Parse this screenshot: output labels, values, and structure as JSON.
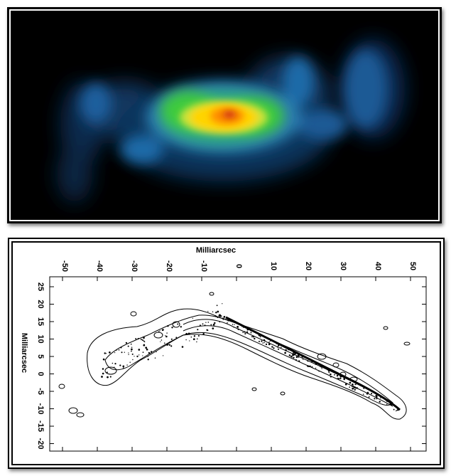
{
  "colors": {
    "background_top": "#000000",
    "glow_core": "#d01010",
    "glow_mid": "#ffd400",
    "glow_green": "#3ecb3e",
    "glow_outer": "#1f5f9f",
    "contour": "#000000"
  },
  "contour_plot": {
    "x_axis": {
      "title": "Milliarcsec",
      "ticks": [
        "-50",
        "-40",
        "-30",
        "-20",
        "-10",
        "0",
        "10",
        "20",
        "30",
        "40",
        "50"
      ]
    },
    "y_axis": {
      "title": "Milliarcsec",
      "ticks": [
        "25",
        "20",
        "15",
        "10",
        "5",
        "0",
        "-5",
        "-10",
        "-15",
        "-20"
      ]
    }
  }
}
